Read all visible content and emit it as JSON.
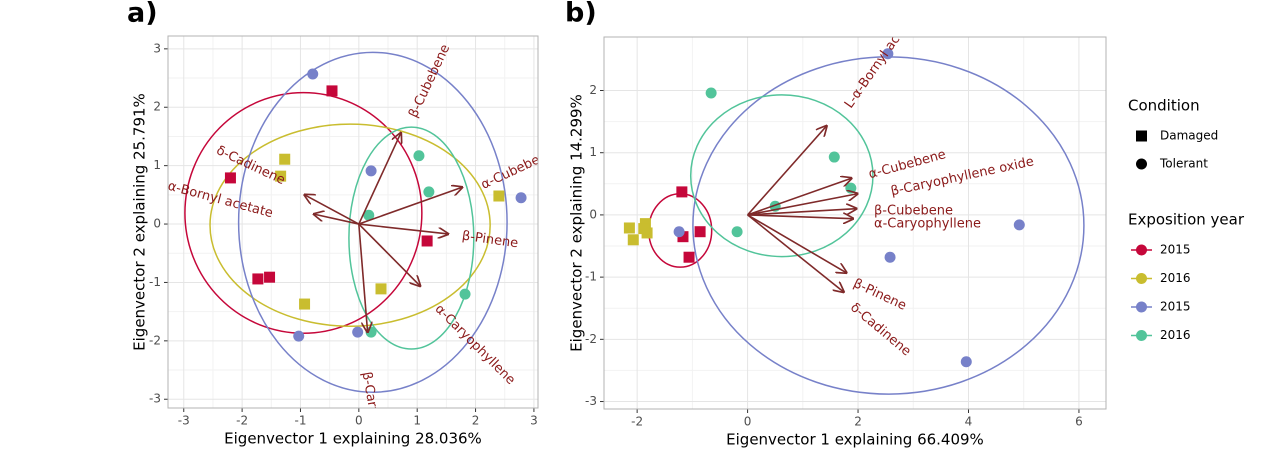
{
  "chart_data": [
    {
      "type": "biplot",
      "panel_label": "a)",
      "x_label": "Eigenvector 1 explaining 28.036%",
      "y_label": "Eigenvector 2 explaining 25.791%",
      "xlim": [
        -3.27,
        3.07
      ],
      "ylim": [
        -3.15,
        3.22
      ],
      "xticks": [
        -3,
        -2,
        -1,
        0,
        1,
        2,
        3
      ],
      "yticks": [
        -3,
        -2,
        -1,
        0,
        1,
        2,
        3
      ],
      "grid": true,
      "series": [
        {
          "name": "2015",
          "condition": "Damaged",
          "marker": "square",
          "color": "#c5073a",
          "x": [
            -0.46,
            -2.2,
            -1.73,
            -1.53,
            1.17
          ],
          "y": [
            2.28,
            0.79,
            -0.94,
            -0.91,
            -0.29
          ],
          "ellipse": {
            "cx": -0.95,
            "cy": 0.19,
            "rx": 2.03,
            "ry": 2.06
          }
        },
        {
          "name": "2016",
          "condition": "Damaged",
          "marker": "square",
          "color": "#c9bd2f",
          "x": [
            -1.27,
            -1.34,
            -0.93,
            0.38,
            2.4
          ],
          "y": [
            1.11,
            0.82,
            -1.37,
            -1.11,
            0.48
          ],
          "ellipse": {
            "cx": -0.15,
            "cy": -0.02,
            "rx": 2.4,
            "ry": 1.73
          }
        },
        {
          "name": "2015",
          "condition": "Tolerant",
          "marker": "circle",
          "color": "#7781c9",
          "x": [
            -0.79,
            0.21,
            2.78,
            -1.03,
            -0.02
          ],
          "y": [
            2.57,
            0.91,
            0.45,
            -1.92,
            -1.85
          ],
          "ellipse": {
            "cx": 0.24,
            "cy": 0.03,
            "rx": 2.3,
            "ry": 2.91
          }
        },
        {
          "name": "2016",
          "condition": "Tolerant",
          "marker": "circle",
          "color": "#52c49a",
          "x": [
            1.03,
            1.2,
            0.17,
            1.82,
            0.21
          ],
          "y": [
            1.17,
            0.55,
            0.15,
            -1.2,
            -1.85
          ],
          "ellipse": {
            "cx": 0.9,
            "cy": -0.24,
            "rx": 1.07,
            "ry": 1.9
          }
        }
      ],
      "loadings": [
        {
          "label": "β-Cubebene",
          "x": 0.72,
          "y": 1.56
        },
        {
          "label": "α-Cubebene",
          "x": 1.77,
          "y": 0.63
        },
        {
          "label": "β-Pinene",
          "x": 1.53,
          "y": -0.17
        },
        {
          "label": "α-Caryophyllene",
          "x": 1.05,
          "y": -1.06
        },
        {
          "label": "β-Caryophyllene",
          "x": 0.15,
          "y": -1.85
        },
        {
          "label": "δ-Cadinene",
          "x": -0.93,
          "y": 0.5
        },
        {
          "label": "α-Bornyl acetate",
          "x": -0.77,
          "y": 0.17
        }
      ]
    },
    {
      "type": "biplot",
      "panel_label": "b)",
      "x_label": "Eigenvector 1 explaining 66.409%",
      "y_label": "Eigenvector 2 explaining 14.299%",
      "xlim": [
        -2.6,
        6.49
      ],
      "ylim": [
        -3.12,
        2.86
      ],
      "xticks": [
        -2,
        0,
        2,
        4,
        6
      ],
      "yticks": [
        -3,
        -2,
        -1,
        0,
        1,
        2
      ],
      "grid": true,
      "series": [
        {
          "name": "2015",
          "condition": "Damaged",
          "marker": "square",
          "color": "#c5073a",
          "x": [
            -1.19,
            -1.17,
            -0.86,
            -1.06
          ],
          "y": [
            0.37,
            -0.35,
            -0.27,
            -0.68
          ],
          "ellipse": {
            "cx": -1.22,
            "cy": -0.25,
            "rx": 0.57,
            "ry": 0.59
          }
        },
        {
          "name": "2016",
          "condition": "Damaged",
          "marker": "square",
          "color": "#c9bd2f",
          "x": [
            -2.14,
            -2.07,
            -1.85,
            -1.82,
            -1.88
          ],
          "y": [
            -0.21,
            -0.4,
            -0.14,
            -0.29,
            -0.22
          ]
        },
        {
          "name": "2015",
          "condition": "Tolerant",
          "marker": "circle",
          "color": "#7781c9",
          "x": [
            2.54,
            -1.24,
            4.92,
            2.58,
            3.96
          ],
          "y": [
            2.59,
            -0.27,
            -0.16,
            -0.68,
            -2.36
          ],
          "ellipse": {
            "cx": 2.55,
            "cy": -0.17,
            "rx": 3.54,
            "ry": 2.71
          }
        },
        {
          "name": "2016",
          "condition": "Tolerant",
          "marker": "circle",
          "color": "#52c49a",
          "x": [
            -0.66,
            1.57,
            1.87,
            0.5,
            -0.19
          ],
          "y": [
            1.96,
            0.93,
            0.43,
            0.14,
            -0.27
          ],
          "ellipse": {
            "cx": 0.62,
            "cy": 0.63,
            "rx": 1.65,
            "ry": 1.3
          }
        }
      ],
      "loadings": [
        {
          "label": "L-α-Bornyl acetate",
          "x": 1.43,
          "y": 1.43
        },
        {
          "label": "α-Cubebene",
          "x": 1.88,
          "y": 0.59
        },
        {
          "label": "β-Caryophyllene oxide",
          "x": 1.99,
          "y": 0.34
        },
        {
          "label": "β-Cubebene",
          "x": 1.97,
          "y": 0.1
        },
        {
          "label": "α-Caryophyllene",
          "x": 1.91,
          "y": -0.06
        },
        {
          "label": "β-Pinene",
          "x": 1.79,
          "y": -0.93
        },
        {
          "label": "δ-Cadinene",
          "x": 1.74,
          "y": -1.24
        }
      ]
    }
  ],
  "legend": {
    "condition_title": "Condition",
    "conditions": [
      {
        "label": "Damaged",
        "marker": "square"
      },
      {
        "label": "Tolerant",
        "marker": "circle"
      }
    ],
    "year_title": "Exposition year"
  }
}
